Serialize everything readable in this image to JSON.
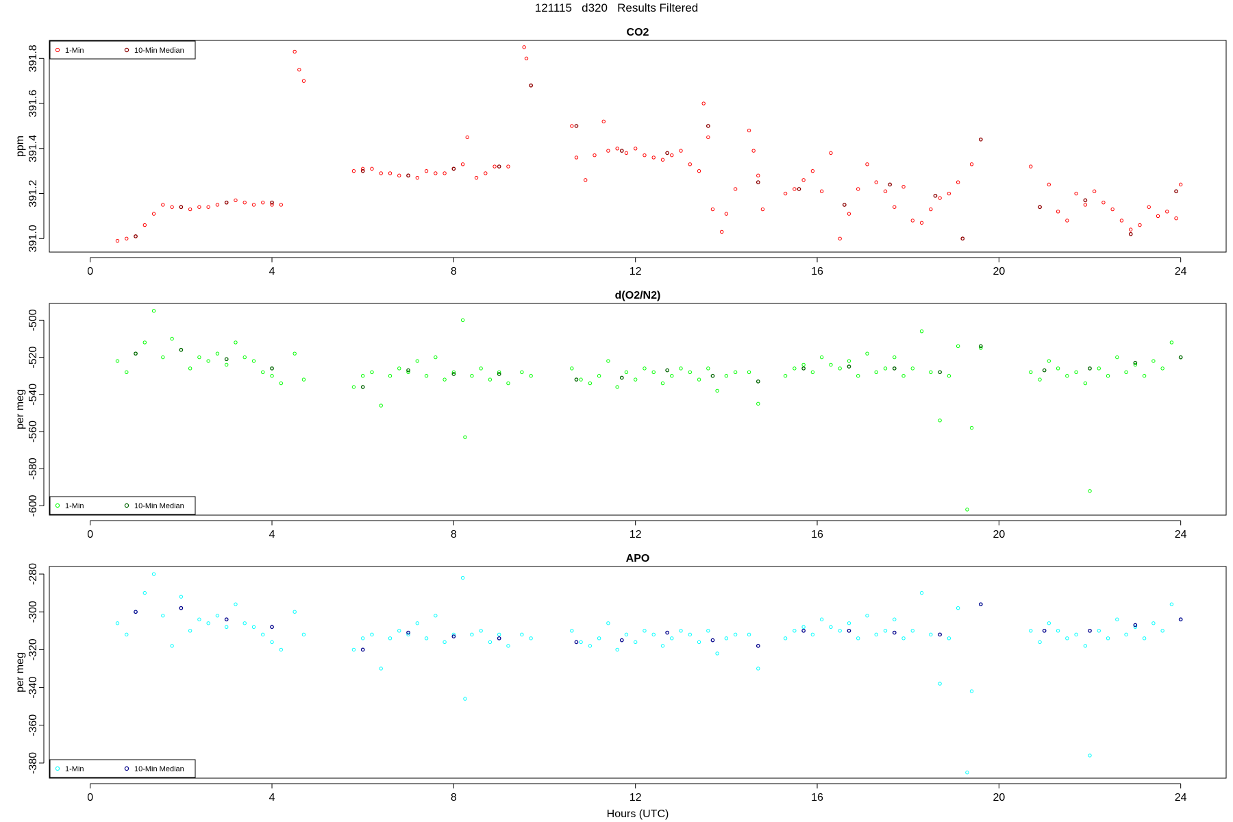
{
  "figure": {
    "title": "121115   d320   Results Filtered",
    "xlabel": "Hours (UTC)"
  },
  "chart_data": [
    {
      "type": "scatter",
      "title": "CO2",
      "ylabel": "ppm",
      "xlim": [
        -0.9,
        25.0
      ],
      "ylim": [
        390.94,
        391.88
      ],
      "xticks": [
        0,
        4,
        8,
        12,
        16,
        20,
        24
      ],
      "yticks": [
        391.0,
        391.2,
        391.4,
        391.6,
        391.8
      ],
      "ytick_labels": [
        "391.0",
        "391.2",
        "391.4",
        "391.6",
        "391.8"
      ],
      "legend": {
        "position": "top-left",
        "entries": [
          "1-Min",
          "10-Min Median"
        ]
      },
      "colors": {
        "one_min": "#ff0000",
        "median": "#8b0000"
      },
      "series": [
        {
          "name": "1-Min",
          "x": [
            0.6,
            0.8,
            1.0,
            1.2,
            1.4,
            1.6,
            1.8,
            2.0,
            2.2,
            2.4,
            2.6,
            2.8,
            3.0,
            3.2,
            3.4,
            3.6,
            3.8,
            4.0,
            4.2,
            4.5,
            4.6,
            4.7,
            5.8,
            6.0,
            6.2,
            6.4,
            6.6,
            6.8,
            7.0,
            7.2,
            7.4,
            7.6,
            7.8,
            8.0,
            8.2,
            8.3,
            8.5,
            8.7,
            8.9,
            9.2,
            9.55,
            9.6,
            9.7,
            10.6,
            10.7,
            10.9,
            11.1,
            11.3,
            11.4,
            11.6,
            11.8,
            12.0,
            12.2,
            12.4,
            12.6,
            12.8,
            13.0,
            13.2,
            13.4,
            13.5,
            13.6,
            13.7,
            13.9,
            14.0,
            14.2,
            14.5,
            14.6,
            14.7,
            14.8,
            15.3,
            15.5,
            15.7,
            15.9,
            16.1,
            16.3,
            16.5,
            16.7,
            16.9,
            17.1,
            17.3,
            17.5,
            17.7,
            17.9,
            18.1,
            18.3,
            18.5,
            18.7,
            18.9,
            19.1,
            19.2,
            19.4,
            19.6,
            20.7,
            20.9,
            21.1,
            21.3,
            21.5,
            21.7,
            21.9,
            22.1,
            22.3,
            22.5,
            22.7,
            22.9,
            23.1,
            23.3,
            23.5,
            23.7,
            23.9,
            24.0
          ],
          "y": [
            390.99,
            391.0,
            391.01,
            391.06,
            391.11,
            391.15,
            391.14,
            391.14,
            391.13,
            391.14,
            391.14,
            391.15,
            391.16,
            391.17,
            391.16,
            391.15,
            391.16,
            391.15,
            391.15,
            391.83,
            391.75,
            391.7,
            391.3,
            391.31,
            391.31,
            391.29,
            391.29,
            391.28,
            391.28,
            391.27,
            391.3,
            391.29,
            391.29,
            391.31,
            391.33,
            391.45,
            391.27,
            391.29,
            391.32,
            391.32,
            391.85,
            391.8,
            391.68,
            391.5,
            391.36,
            391.26,
            391.37,
            391.52,
            391.39,
            391.4,
            391.38,
            391.4,
            391.37,
            391.36,
            391.35,
            391.37,
            391.39,
            391.33,
            391.3,
            391.6,
            391.45,
            391.13,
            391.03,
            391.11,
            391.22,
            391.48,
            391.39,
            391.28,
            391.13,
            391.2,
            391.22,
            391.26,
            391.3,
            391.21,
            391.38,
            391.0,
            391.11,
            391.22,
            391.33,
            391.25,
            391.21,
            391.14,
            391.23,
            391.08,
            391.07,
            391.13,
            391.18,
            391.2,
            391.25,
            391.0,
            391.33,
            391.44,
            391.32,
            391.14,
            391.24,
            391.12,
            391.08,
            391.2,
            391.15,
            391.21,
            391.16,
            391.13,
            391.08,
            391.04,
            391.06,
            391.14,
            391.1,
            391.12,
            391.09,
            391.24
          ]
        },
        {
          "name": "10-Min Median",
          "x": [
            1.0,
            2.0,
            3.0,
            4.0,
            6.0,
            7.0,
            8.0,
            9.0,
            9.7,
            10.7,
            11.7,
            12.7,
            13.6,
            14.7,
            15.6,
            16.6,
            17.6,
            18.6,
            19.2,
            19.6,
            20.9,
            21.9,
            22.9,
            23.9
          ],
          "y": [
            391.01,
            391.14,
            391.16,
            391.16,
            391.3,
            391.28,
            391.31,
            391.32,
            391.68,
            391.5,
            391.39,
            391.38,
            391.5,
            391.25,
            391.22,
            391.15,
            391.24,
            391.19,
            391.0,
            391.44,
            391.14,
            391.17,
            391.02,
            391.21
          ]
        }
      ]
    },
    {
      "type": "scatter",
      "title": "d(O2/N2)",
      "ylabel": "per meg",
      "xlim": [
        -0.9,
        25.0
      ],
      "ylim": [
        -605,
        -491
      ],
      "xticks": [
        0,
        4,
        8,
        12,
        16,
        20,
        24
      ],
      "yticks": [
        -600,
        -580,
        -560,
        -540,
        -520,
        -500
      ],
      "ytick_labels": [
        "-600",
        "-580",
        "-560",
        "-540",
        "-520",
        "-500"
      ],
      "legend": {
        "position": "bottom-left",
        "entries": [
          "1-Min",
          "10-Min Median"
        ]
      },
      "colors": {
        "one_min": "#00ff00",
        "median": "#006400"
      },
      "series": [
        {
          "name": "1-Min",
          "x": [
            0.6,
            0.8,
            1.0,
            1.2,
            1.4,
            1.6,
            1.8,
            2.0,
            2.2,
            2.4,
            2.6,
            2.8,
            3.0,
            3.2,
            3.4,
            3.6,
            3.8,
            4.0,
            4.2,
            4.5,
            4.7,
            5.8,
            6.0,
            6.2,
            6.4,
            6.6,
            6.8,
            7.0,
            7.2,
            7.4,
            7.6,
            7.8,
            8.0,
            8.2,
            8.25,
            8.4,
            8.6,
            8.8,
            9.0,
            9.2,
            9.5,
            9.7,
            10.6,
            10.8,
            11.0,
            11.2,
            11.4,
            11.6,
            11.8,
            12.0,
            12.2,
            12.4,
            12.6,
            12.8,
            13.0,
            13.2,
            13.4,
            13.6,
            13.8,
            14.0,
            14.2,
            14.5,
            14.7,
            15.3,
            15.5,
            15.7,
            15.9,
            16.1,
            16.3,
            16.5,
            16.7,
            16.9,
            17.1,
            17.3,
            17.5,
            17.7,
            17.9,
            18.1,
            18.3,
            18.5,
            18.7,
            18.9,
            19.1,
            19.3,
            19.4,
            19.6,
            20.7,
            20.9,
            21.1,
            21.3,
            21.5,
            21.7,
            21.9,
            22.0,
            22.2,
            22.4,
            22.6,
            22.8,
            23.0,
            23.2,
            23.4,
            23.6,
            23.8,
            24.0
          ],
          "y": [
            -522,
            -528,
            -518,
            -512,
            -495,
            -520,
            -510,
            -516,
            -526,
            -520,
            -522,
            -518,
            -524,
            -512,
            -520,
            -522,
            -528,
            -530,
            -534,
            -518,
            -532,
            -536,
            -530,
            -528,
            -546,
            -530,
            -526,
            -528,
            -522,
            -530,
            -520,
            -532,
            -528,
            -500,
            -563,
            -530,
            -526,
            -532,
            -528,
            -534,
            -528,
            -530,
            -526,
            -532,
            -534,
            -530,
            -522,
            -536,
            -528,
            -532,
            -526,
            -528,
            -534,
            -530,
            -526,
            -528,
            -532,
            -526,
            -538,
            -530,
            -528,
            -528,
            -545,
            -530,
            -526,
            -524,
            -528,
            -520,
            -524,
            -526,
            -522,
            -530,
            -518,
            -528,
            -526,
            -520,
            -530,
            -526,
            -506,
            -528,
            -554,
            -530,
            -514,
            -602,
            -558,
            -515,
            -528,
            -532,
            -522,
            -526,
            -530,
            -528,
            -534,
            -592,
            -526,
            -530,
            -520,
            -528,
            -524,
            -530,
            -522,
            -526,
            -512,
            -520
          ]
        },
        {
          "name": "10-Min Median",
          "x": [
            1.0,
            2.0,
            3.0,
            4.0,
            6.0,
            7.0,
            8.0,
            9.0,
            10.7,
            11.7,
            12.7,
            13.7,
            14.7,
            15.7,
            16.7,
            17.7,
            18.7,
            19.6,
            21.0,
            22.0,
            23.0,
            24.0
          ],
          "y": [
            -518,
            -516,
            -521,
            -526,
            -536,
            -527,
            -529,
            -529,
            -532,
            -531,
            -527,
            -530,
            -533,
            -526,
            -525,
            -526,
            -528,
            -514,
            -527,
            -526,
            -523,
            -520
          ]
        }
      ]
    },
    {
      "type": "scatter",
      "title": "APO",
      "ylabel": "per meg",
      "xlim": [
        -0.9,
        25.0
      ],
      "ylim": [
        -388,
        -276
      ],
      "xticks": [
        0,
        4,
        8,
        12,
        16,
        20,
        24
      ],
      "yticks": [
        -380,
        -360,
        -340,
        -320,
        -300,
        -280
      ],
      "ytick_labels": [
        "-380",
        "-360",
        "-340",
        "-320",
        "-300",
        "-280"
      ],
      "legend": {
        "position": "bottom-left",
        "entries": [
          "1-Min",
          "10-Min Median"
        ]
      },
      "colors": {
        "one_min": "#00ffff",
        "median": "#00008b"
      },
      "series": [
        {
          "name": "1-Min",
          "x": [
            0.6,
            0.8,
            1.0,
            1.2,
            1.4,
            1.6,
            1.8,
            2.0,
            2.2,
            2.4,
            2.6,
            2.8,
            3.0,
            3.2,
            3.4,
            3.6,
            3.8,
            4.0,
            4.2,
            4.5,
            4.7,
            5.8,
            6.0,
            6.2,
            6.4,
            6.6,
            6.8,
            7.0,
            7.2,
            7.4,
            7.6,
            7.8,
            8.0,
            8.2,
            8.25,
            8.4,
            8.6,
            8.8,
            9.0,
            9.2,
            9.5,
            9.7,
            10.6,
            10.8,
            11.0,
            11.2,
            11.4,
            11.6,
            11.8,
            12.0,
            12.2,
            12.4,
            12.6,
            12.8,
            13.0,
            13.2,
            13.4,
            13.6,
            13.8,
            14.0,
            14.2,
            14.5,
            14.7,
            15.3,
            15.5,
            15.7,
            15.9,
            16.1,
            16.3,
            16.5,
            16.7,
            16.9,
            17.1,
            17.3,
            17.5,
            17.7,
            17.9,
            18.1,
            18.3,
            18.5,
            18.7,
            18.9,
            19.1,
            19.3,
            19.4,
            19.6,
            20.7,
            20.9,
            21.1,
            21.3,
            21.5,
            21.7,
            21.9,
            22.0,
            22.2,
            22.4,
            22.6,
            22.8,
            23.0,
            23.2,
            23.4,
            23.6,
            23.8,
            24.0
          ],
          "y": [
            -306,
            -312,
            -300,
            -290,
            -280,
            -302,
            -318,
            -292,
            -310,
            -304,
            -306,
            -302,
            -308,
            -296,
            -306,
            -308,
            -312,
            -316,
            -320,
            -300,
            -312,
            -320,
            -314,
            -312,
            -330,
            -314,
            -310,
            -312,
            -306,
            -314,
            -302,
            -316,
            -312,
            -282,
            -346,
            -312,
            -310,
            -316,
            -312,
            -318,
            -312,
            -314,
            -310,
            -316,
            -318,
            -314,
            -306,
            -320,
            -312,
            -316,
            -310,
            -312,
            -318,
            -314,
            -310,
            -312,
            -316,
            -310,
            -322,
            -314,
            -312,
            -312,
            -330,
            -314,
            -310,
            -308,
            -312,
            -304,
            -308,
            -310,
            -306,
            -314,
            -302,
            -312,
            -310,
            -304,
            -314,
            -310,
            -290,
            -312,
            -338,
            -314,
            -298,
            -385,
            -342,
            -296,
            -310,
            -316,
            -306,
            -310,
            -314,
            -312,
            -318,
            -376,
            -310,
            -314,
            -304,
            -312,
            -308,
            -314,
            -306,
            -310,
            -296,
            -304
          ]
        },
        {
          "name": "10-Min Median",
          "x": [
            1.0,
            2.0,
            3.0,
            4.0,
            6.0,
            7.0,
            8.0,
            9.0,
            10.7,
            11.7,
            12.7,
            13.7,
            14.7,
            15.7,
            16.7,
            17.7,
            18.7,
            19.6,
            21.0,
            22.0,
            23.0,
            24.0
          ],
          "y": [
            -300,
            -298,
            -304,
            -308,
            -320,
            -311,
            -313,
            -314,
            -316,
            -315,
            -311,
            -315,
            -318,
            -310,
            -310,
            -311,
            -312,
            -296,
            -310,
            -310,
            -307,
            -304
          ]
        }
      ]
    }
  ]
}
